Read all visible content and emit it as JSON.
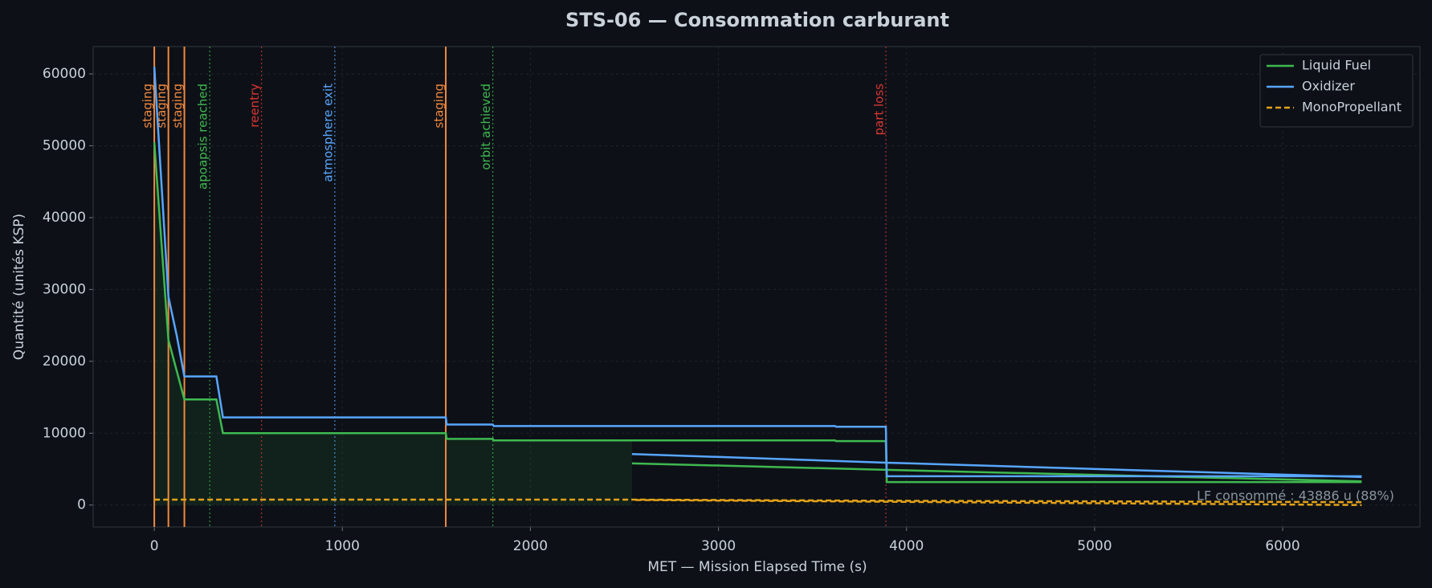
{
  "chart_data": {
    "type": "line",
    "title": "STS-06 — Consommation carburant",
    "x_label": "MET — Mission Elapsed Time (s)",
    "y_label": "Quantité (unités KSP)",
    "xlim": [
      -325,
      6730
    ],
    "ylim": [
      -3050,
      63800
    ],
    "xticks": [
      0,
      1000,
      2000,
      3000,
      4000,
      5000,
      6000
    ],
    "yticks": [
      0,
      10000,
      20000,
      30000,
      40000,
      50000,
      60000
    ],
    "grid": true,
    "legend": "upper right",
    "series": [
      {
        "name": "Liquid Fuel",
        "color": "#3fb950",
        "dashed": false,
        "fill": true,
        "x": [
          0,
          75,
          160,
          330,
          365,
          1550,
          1555,
          1800,
          1805,
          3620,
          3625,
          3890,
          3895,
          6420,
          null,
          2540,
          3890,
          6420
        ],
        "values": [
          50500,
          23000,
          14700,
          14700,
          10000,
          10000,
          9200,
          9200,
          9000,
          9000,
          8900,
          8900,
          3200,
          3200,
          null,
          5800,
          4900,
          3300
        ]
      },
      {
        "name": "Oxidizer",
        "color": "#58a6ff",
        "dashed": false,
        "fill": false,
        "x": [
          0,
          75,
          120,
          160,
          330,
          365,
          1550,
          1555,
          1800,
          1805,
          3620,
          3625,
          3890,
          3895,
          6420,
          null,
          2540,
          3890,
          6420
        ],
        "values": [
          61000,
          29000,
          23500,
          17900,
          17900,
          12200,
          12200,
          11200,
          11200,
          11000,
          11000,
          10900,
          10900,
          4000,
          4000,
          null,
          7100,
          5900,
          3900
        ]
      },
      {
        "name": "MonoPropellant",
        "color": "#e3a21a",
        "dashed": true,
        "fill": false,
        "x": [
          0,
          2560,
          3890,
          6420,
          null,
          2560,
          6420
        ],
        "values": [
          750,
          750,
          600,
          400,
          null,
          700,
          0
        ]
      }
    ],
    "events": [
      {
        "x": 0,
        "label": "staging",
        "color": "#f0883e",
        "solid": true
      },
      {
        "x": 75,
        "label": "staging",
        "color": "#f0883e",
        "solid": true
      },
      {
        "x": 160,
        "label": "staging",
        "color": "#f0883e",
        "solid": true
      },
      {
        "x": 295,
        "label": "apoapsis reached",
        "color": "#3fb950",
        "solid": false
      },
      {
        "x": 570,
        "label": "reentry",
        "color": "#da3633",
        "solid": false
      },
      {
        "x": 960,
        "label": "atmosphere exit",
        "color": "#58a6ff",
        "solid": false
      },
      {
        "x": 1550,
        "label": "staging",
        "color": "#f0883e",
        "solid": true
      },
      {
        "x": 1800,
        "label": "orbit achieved",
        "color": "#3fb950",
        "solid": false
      },
      {
        "x": 3890,
        "label": "part loss",
        "color": "#da3633",
        "solid": false
      }
    ],
    "annotation": "LF consommé : 43886 u (88%)"
  }
}
